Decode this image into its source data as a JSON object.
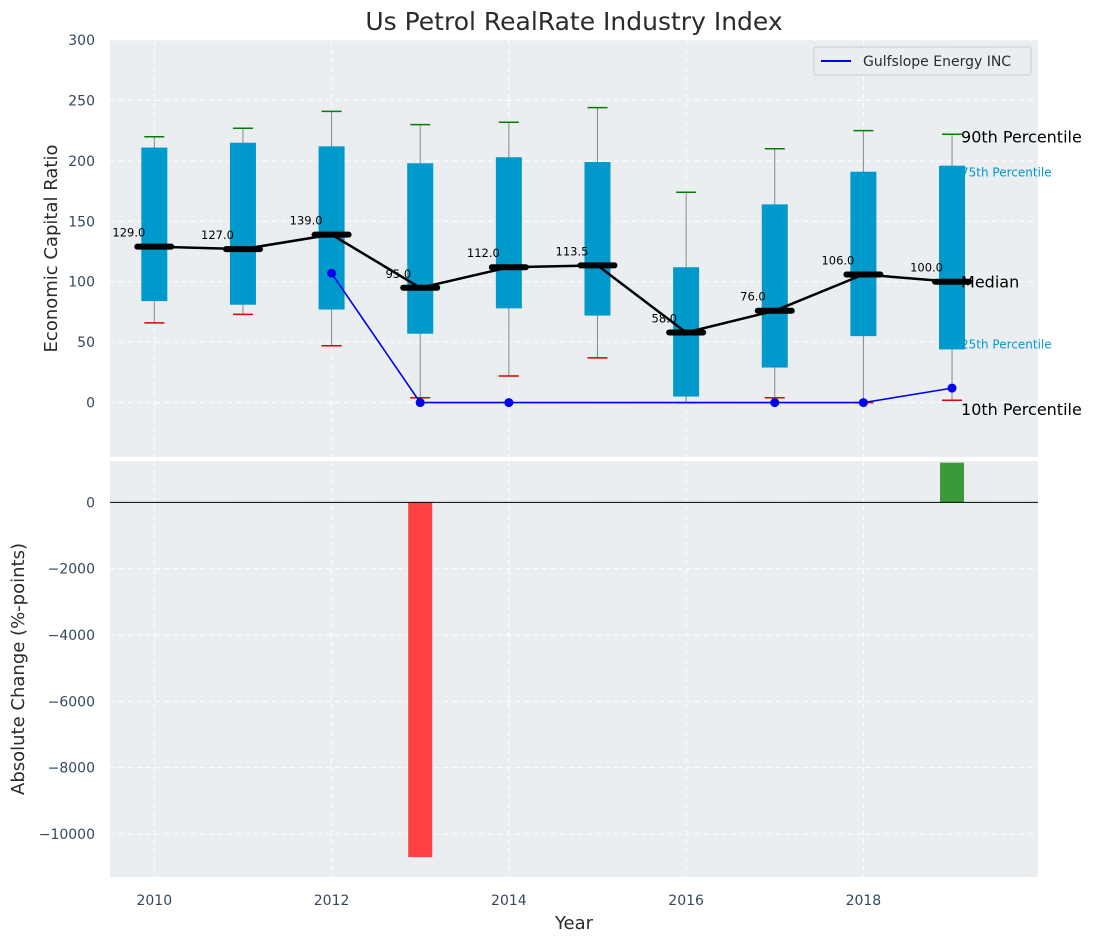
{
  "chart_data": {
    "title": "Us Petrol RealRate Industry Index",
    "xlabel": "Year",
    "x_ticks": [
      2010,
      2012,
      2014,
      2016,
      2018
    ],
    "colors": {
      "box": "#0099cc",
      "median_line": "#000000",
      "company": "#0000ee",
      "whisker_top": "#008000",
      "whisker_bottom": "#dd0000",
      "bar_negative": "#ff4040",
      "bar_positive": "#3a9a3a",
      "panel_bg": "#eaeef0"
    },
    "top": {
      "type": "box",
      "ylabel": "Economic Capital Ratio",
      "ylim": [
        -45,
        300
      ],
      "y_ticks": [
        0,
        50,
        100,
        150,
        200,
        250,
        300
      ],
      "legend": {
        "label": "Gulfslope Energy INC",
        "position": "top-right"
      },
      "years": [
        2010,
        2011,
        2012,
        2013,
        2014,
        2015,
        2016,
        2017,
        2018,
        2019
      ],
      "p10": [
        66,
        73,
        47,
        4,
        22,
        37,
        0,
        4,
        0,
        2
      ],
      "p25": [
        84,
        81,
        77,
        57,
        78,
        72,
        5,
        29,
        55,
        44
      ],
      "median": [
        129.0,
        127.0,
        139.0,
        95.0,
        112.0,
        113.5,
        58.0,
        76.0,
        106.0,
        100.0
      ],
      "median_labels": [
        "129.0",
        "127.0",
        "139.0",
        "95.0",
        "112.0",
        "113.5",
        "58.0",
        "76.0",
        "106.0",
        "100.0"
      ],
      "p75": [
        211,
        215,
        212,
        198,
        203,
        199,
        112,
        164,
        191,
        196
      ],
      "p90": [
        220,
        227,
        241,
        230,
        232,
        244,
        174,
        210,
        225,
        222
      ],
      "company_values": [
        null,
        null,
        107,
        0,
        0,
        null,
        null,
        0,
        0,
        12
      ],
      "annotations": {
        "p90": "90th Percentile",
        "p75": "75th Percentile",
        "median": "Median",
        "p25": "25th Percentile",
        "p10": "10th Percentile"
      }
    },
    "bottom": {
      "type": "bar",
      "ylabel": "Absolute Change (%-points)",
      "ylim": [
        -11300,
        1250
      ],
      "y_ticks": [
        0,
        -2000,
        -4000,
        -6000,
        -8000,
        -10000
      ],
      "bars": [
        {
          "year": 2013,
          "value": -10700
        },
        {
          "year": 2019,
          "value": 1200
        }
      ]
    }
  }
}
